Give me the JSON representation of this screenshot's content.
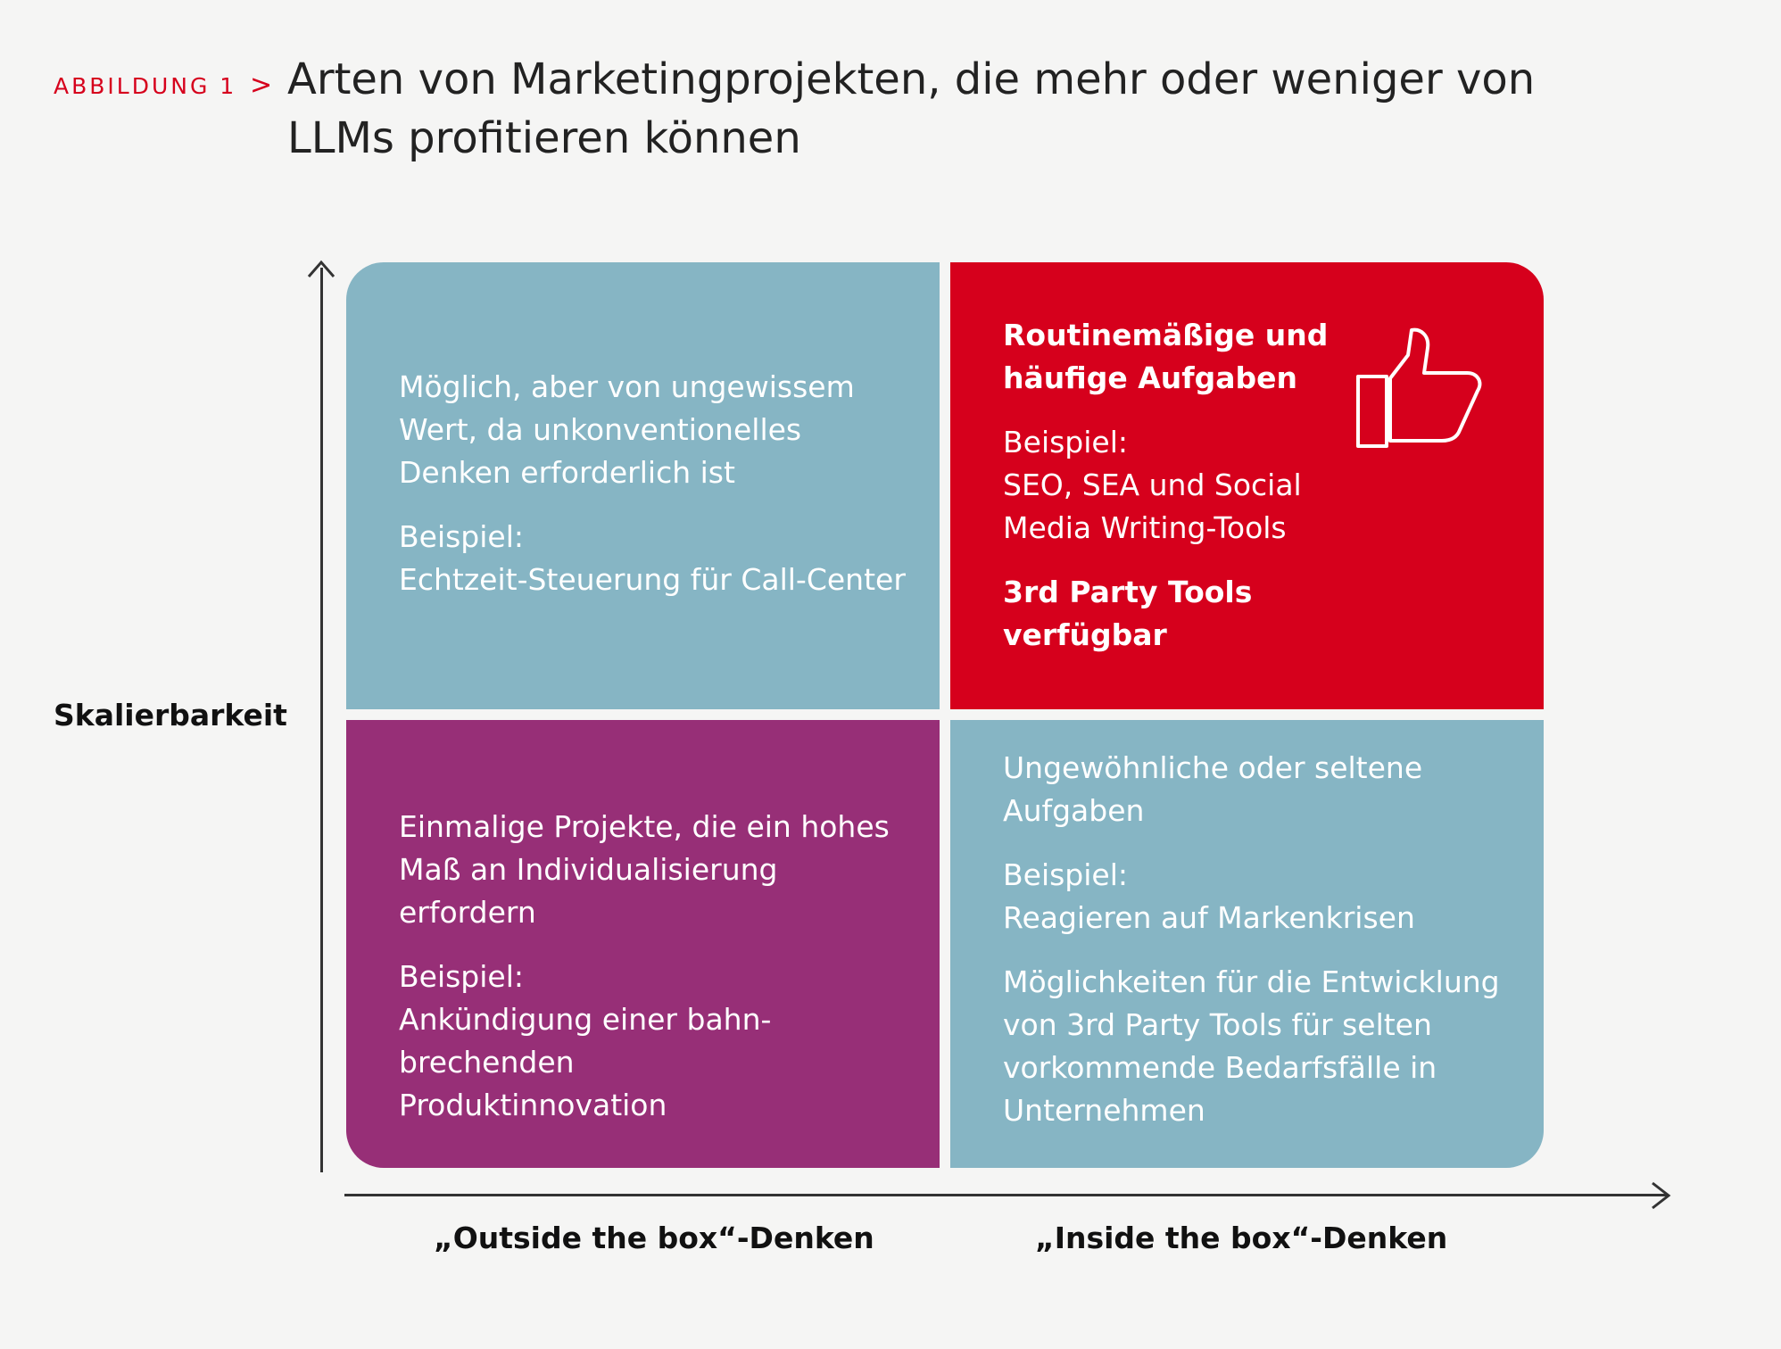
{
  "figure": {
    "label": "ABBILDUNG 1",
    "chevron": ">",
    "title": "Arten von Marketingprojekten, die mehr oder weniger von LLMs profitieren können"
  },
  "axes": {
    "y_label": "Skalierbarkeit",
    "x_label_left": "„Outside the box“-Denken",
    "x_label_right": "„Inside the box“-Denken"
  },
  "quadrants": {
    "top_left": {
      "description": "Möglich, aber von ungewissem Wert, da unkonventionelles Denken erforderlich ist",
      "example_label": "Beispiel:",
      "example": "Echtzeit-Steuerung für Call-Center"
    },
    "top_right": {
      "heading": "Routinemäßige und häufige Aufgaben",
      "example_label": "Beispiel:",
      "example": "SEO, SEA und Social Media Writing-Tools",
      "note": "3rd Party Tools verfügbar",
      "icon": "thumbs-up-icon"
    },
    "bottom_left": {
      "description": "Einmalige Projekte, die ein hohes Maß an Individualisierung erfordern",
      "example_label": "Beispiel:",
      "example": "Ankündigung einer bahn-brechenden Produktinnovation"
    },
    "bottom_right": {
      "description": "Ungewöhnliche oder seltene Aufgaben",
      "example_label": "Beispiel:",
      "example": "Reagieren auf Markenkrisen",
      "note": "Möglichkeiten für die Entwicklung von 3rd Party Tools für selten vorkommende Bedarfsfälle in Unternehmen"
    }
  },
  "colors": {
    "accent_red": "#d6001c",
    "quadrant_blue": "#86b5c4",
    "quadrant_purple": "#972f77",
    "background": "#f5f5f4"
  }
}
